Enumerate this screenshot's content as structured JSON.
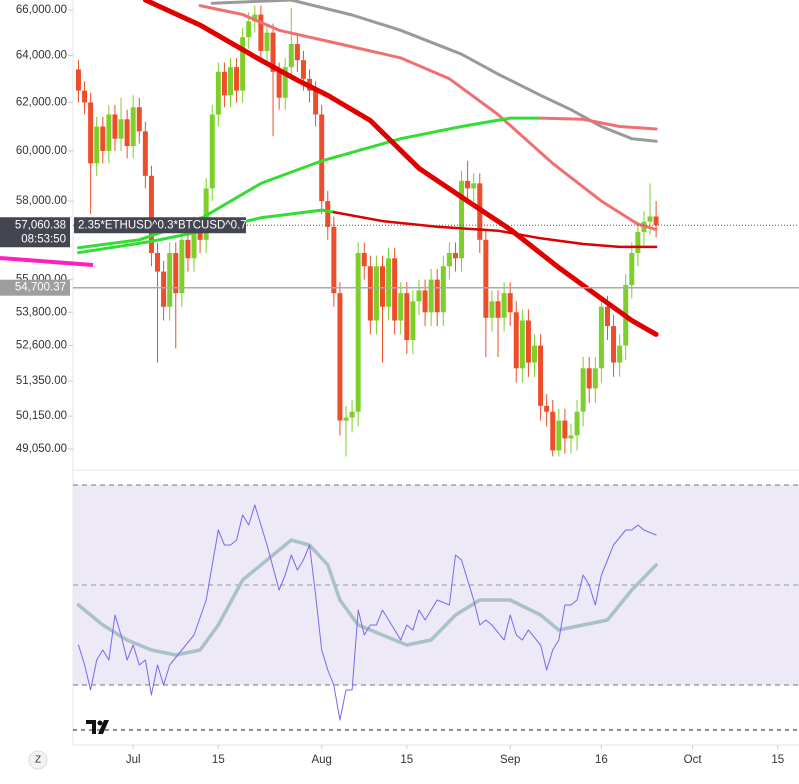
{
  "chart_data": {
    "type": "candlestick",
    "symbol": "2.35*ETHUSD^0.3*BTCUSD^0.7",
    "ylog": true,
    "ylim": [
      48750,
      66450
    ],
    "yticks": [
      {
        "value": 66000,
        "label": "66,000.00"
      },
      {
        "value": 64000,
        "label": "64,000.00"
      },
      {
        "value": 62000,
        "label": "62,000.00"
      },
      {
        "value": 60000,
        "label": "60,000.00"
      },
      {
        "value": 58000,
        "label": "58,000.00"
      },
      {
        "value": 55000,
        "label": "55,000.00"
      },
      {
        "value": 53800,
        "label": "53,800.00"
      },
      {
        "value": 52600,
        "label": "52,600.00"
      },
      {
        "value": 51350,
        "label": "51,350.00"
      },
      {
        "value": 50150,
        "label": "50,150.00"
      },
      {
        "value": 49050,
        "label": "49,050.00"
      }
    ],
    "xlim": [
      -9.9,
      109.5
    ],
    "xticks": [
      {
        "value": 0,
        "label": "Jul"
      },
      {
        "value": 14,
        "label": "15"
      },
      {
        "value": 31,
        "label": "Aug"
      },
      {
        "value": 45,
        "label": "15"
      },
      {
        "value": 62,
        "label": "Sep"
      },
      {
        "value": 77,
        "label": "16"
      },
      {
        "value": 92,
        "label": "Oct"
      },
      {
        "value": 106,
        "label": "15"
      }
    ],
    "up_color": "#7dcf2a",
    "down_color": "#ee4d2b",
    "x": [
      -9,
      -8,
      -7,
      -6,
      -5,
      -4,
      -3,
      -2,
      -1,
      0,
      1,
      2,
      3,
      4,
      5,
      6,
      7,
      8,
      9,
      10,
      11,
      12,
      13,
      14,
      15,
      16,
      17,
      18,
      19,
      20,
      21,
      22,
      23,
      24,
      25,
      26,
      27,
      28,
      29,
      30,
      31,
      32,
      33,
      34,
      35,
      36,
      37,
      38,
      39,
      40,
      41,
      42,
      43,
      44,
      45,
      46,
      47,
      48,
      49,
      50,
      51,
      52,
      53,
      54,
      55,
      56,
      57,
      58,
      59,
      60,
      61,
      62,
      63,
      64,
      65,
      66,
      67,
      68,
      69,
      70,
      71,
      72,
      73,
      74,
      75,
      76,
      77,
      78,
      79,
      80,
      81,
      82,
      83,
      84,
      85,
      86
    ],
    "open": [
      63400,
      62500,
      62000,
      59500,
      61000,
      60000,
      61500,
      60500,
      61300,
      60200,
      61800,
      60800,
      59000,
      56000,
      55300,
      54000,
      56000,
      54500,
      56500,
      55800,
      57000,
      56500,
      58500,
      61500,
      63300,
      62300,
      63500,
      62500,
      64800,
      65500,
      65800,
      64200,
      65000,
      63300,
      62200,
      63500,
      64500,
      63800,
      63000,
      62500,
      61500,
      58000,
      57000,
      54500,
      50000,
      50100,
      50300,
      56000,
      55500,
      53500,
      55500,
      54000,
      55800,
      53500,
      54500,
      52800,
      54200,
      54600,
      53800,
      55000,
      53800,
      55500,
      56000,
      55800,
      58800,
      58500,
      58700,
      56500,
      53600,
      54200,
      53600,
      54500,
      53800,
      51800,
      53500,
      52000,
      52600,
      50500,
      50300,
      49000,
      50000,
      49400,
      49500,
      50300,
      51800,
      51100,
      51800,
      54000,
      53300,
      52000,
      52600,
      54800,
      56000,
      56800,
      57200,
      57400
    ],
    "high": [
      63800,
      62900,
      62400,
      61400,
      61400,
      61900,
      61900,
      62200,
      61700,
      62300,
      62200,
      61200,
      59400,
      56400,
      55700,
      56400,
      56400,
      56900,
      56900,
      57400,
      57400,
      58900,
      61900,
      63700,
      63700,
      63900,
      63900,
      65200,
      65900,
      66200,
      66200,
      65400,
      65400,
      63700,
      63900,
      66100,
      64900,
      64200,
      63400,
      62900,
      61900,
      58400,
      57400,
      54900,
      50500,
      50700,
      56400,
      56400,
      55900,
      55900,
      55900,
      56200,
      56200,
      54900,
      54900,
      54600,
      55000,
      55000,
      55400,
      55400,
      55900,
      56400,
      56400,
      59200,
      59600,
      59100,
      59100,
      56900,
      54600,
      54600,
      54900,
      54900,
      54200,
      53900,
      53900,
      53000,
      53000,
      50900,
      50700,
      50400,
      50400,
      49900,
      50700,
      52200,
      52200,
      52200,
      54400,
      54400,
      53700,
      53000,
      55200,
      56400,
      57200,
      57600,
      58700,
      58000
    ],
    "low": [
      62000,
      61500,
      57500,
      59000,
      59500,
      59500,
      60000,
      60000,
      59700,
      59700,
      60300,
      58500,
      55500,
      52000,
      53500,
      53500,
      52500,
      54000,
      55300,
      55300,
      56000,
      56000,
      58000,
      61000,
      61800,
      61800,
      62000,
      62000,
      64300,
      65000,
      63700,
      63700,
      60600,
      61700,
      61700,
      63000,
      63300,
      62500,
      62000,
      61000,
      57500,
      56500,
      54000,
      49500,
      48800,
      49600,
      49800,
      55000,
      53000,
      53000,
      52000,
      53500,
      53000,
      53000,
      52300,
      52300,
      53700,
      53300,
      53300,
      53300,
      53300,
      55000,
      55300,
      55300,
      58000,
      58000,
      56000,
      52200,
      53100,
      52200,
      53100,
      53300,
      51300,
      51300,
      51500,
      51500,
      50000,
      49800,
      48800,
      48800,
      48900,
      48900,
      49000,
      49800,
      50600,
      50600,
      51300,
      52800,
      51500,
      51500,
      52100,
      54300,
      55500,
      56300,
      56700,
      56600
    ],
    "close": [
      62500,
      62000,
      59500,
      61000,
      60000,
      61500,
      60500,
      61300,
      60200,
      61800,
      60800,
      59000,
      56000,
      55300,
      54000,
      56000,
      54500,
      56500,
      55800,
      57000,
      56500,
      58500,
      61500,
      63300,
      62300,
      63500,
      62500,
      64800,
      65500,
      65800,
      64200,
      65000,
      63300,
      62200,
      63500,
      64500,
      63800,
      63000,
      62500,
      61500,
      58000,
      57000,
      54500,
      50000,
      50100,
      50300,
      56000,
      55500,
      53500,
      55500,
      54000,
      55800,
      53500,
      54500,
      52800,
      54200,
      54600,
      53800,
      55000,
      53800,
      55500,
      56000,
      55800,
      58800,
      58500,
      58700,
      56500,
      53600,
      54200,
      53600,
      54500,
      53800,
      51800,
      53500,
      52000,
      52600,
      50500,
      50300,
      49000,
      50000,
      49400,
      49500,
      50300,
      51800,
      51100,
      51800,
      54000,
      53300,
      52000,
      52600,
      54800,
      56000,
      56800,
      57200,
      57400,
      57060
    ],
    "lines": [
      {
        "color": "#999999",
        "width": 3,
        "x": [
          13,
          26,
          36,
          44,
          54,
          60,
          67,
          72,
          77,
          82,
          86
        ],
        "values": [
          66300,
          66450,
          65780,
          65100,
          64060,
          63200,
          62300,
          61700,
          61000,
          60500,
          60400
        ]
      },
      {
        "color": "#f07070",
        "width": 3,
        "x": [
          11,
          18,
          24,
          34,
          44,
          52,
          60,
          69,
          77,
          83,
          86
        ],
        "values": [
          66200,
          65800,
          65100,
          64500,
          63900,
          63000,
          61500,
          59500,
          58000,
          57100,
          56900
        ]
      },
      {
        "color": "#33dd33",
        "width": 3,
        "x": [
          -9,
          1,
          11,
          21,
          31,
          44,
          54,
          62,
          67
        ],
        "values": [
          56200,
          56500,
          57300,
          58700,
          59600,
          60500,
          61000,
          61350,
          61350
        ]
      },
      {
        "color": "#f07070",
        "width": 3,
        "x": [
          67,
          74,
          80,
          86
        ],
        "values": [
          61350,
          61300,
          61000,
          60900
        ]
      },
      {
        "color": "#33dd33",
        "width": 3,
        "x": [
          -9,
          3,
          13,
          21,
          31,
          33
        ],
        "values": [
          56010,
          56440,
          56910,
          57350,
          57650,
          57570
        ]
      },
      {
        "color": "#dd0000",
        "width": 2.5,
        "x": [
          33,
          41,
          50,
          60,
          67,
          74,
          80,
          86
        ],
        "values": [
          57570,
          57220,
          57000,
          56850,
          56560,
          56340,
          56230,
          56230
        ]
      },
      {
        "color": "#e00000",
        "width": 5,
        "x": [
          2,
          11,
          21,
          27,
          32,
          39,
          47,
          55,
          62,
          70,
          77,
          82,
          86
        ],
        "values": [
          66450,
          65330,
          63800,
          62940,
          62300,
          61250,
          59300,
          58000,
          56900,
          55450,
          54300,
          53500,
          53000
        ]
      }
    ],
    "last_price": {
      "value": 57060.38,
      "label": "57,060.38"
    },
    "countdown": "08:53:50",
    "level": {
      "value": 54700.37,
      "label": "54,700.37"
    },
    "oscillator": {
      "ylim": [
        18,
        73
      ],
      "levels": [
        70,
        50,
        30
      ],
      "band_color": "#ede9f7",
      "series": [
        {
          "color": "#a9c1c7",
          "width": 3.5,
          "x": [
            -9,
            -5,
            -1,
            3,
            7,
            11,
            14,
            18,
            22,
            26,
            29,
            32,
            34,
            37,
            41,
            45,
            49,
            53,
            57,
            62,
            67,
            70,
            74,
            78,
            82,
            86
          ],
          "values": [
            46,
            42,
            39,
            37,
            36,
            37,
            42,
            51,
            55,
            59,
            58,
            54,
            47,
            42,
            40,
            38,
            39,
            44,
            47,
            47,
            44,
            41,
            42,
            43,
            49,
            54
          ]
        },
        {
          "color": "#7b68ee",
          "width": 1,
          "x": [
            -9,
            -8,
            -7,
            -6,
            -5,
            -4,
            -3,
            -2,
            -1,
            0,
            1,
            2,
            3,
            4,
            5,
            6,
            8,
            10,
            12,
            14,
            15,
            16,
            17,
            18,
            19,
            20,
            21,
            22,
            24,
            25,
            26,
            27,
            28,
            29,
            30,
            31,
            32,
            33,
            34,
            35,
            36,
            37,
            38,
            39,
            40,
            41,
            43,
            44,
            45,
            46,
            47,
            48,
            50,
            52,
            53,
            54,
            56,
            57,
            58,
            59,
            61,
            62,
            63,
            64,
            65,
            67,
            68,
            69,
            70,
            71,
            72,
            73,
            74,
            75,
            76,
            77,
            78,
            79,
            81,
            82,
            83,
            84,
            86
          ],
          "values": [
            38,
            34,
            29,
            35,
            37,
            35,
            44,
            40,
            35,
            38,
            34,
            35,
            28,
            34,
            30,
            34,
            37,
            40,
            47,
            61,
            58,
            58,
            59,
            64,
            62,
            66,
            62,
            58,
            49,
            52,
            56,
            53,
            55,
            58,
            48,
            37,
            33,
            30,
            23,
            29,
            29,
            45,
            40,
            42,
            42,
            45,
            41,
            39,
            42,
            41,
            45,
            43,
            47,
            46,
            56,
            55,
            47,
            42,
            43,
            42,
            39,
            44,
            40,
            39,
            41,
            38,
            33,
            37,
            39,
            46,
            46,
            47,
            52,
            50,
            46,
            52,
            55,
            58,
            61,
            61,
            62,
            61,
            60
          ]
        }
      ]
    },
    "zoom_button": "Z"
  }
}
